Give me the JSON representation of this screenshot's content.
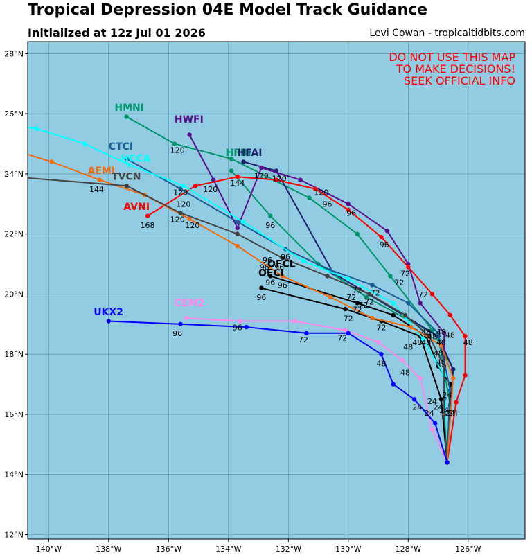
{
  "header": {
    "title": "Tropical Depression 04E Model Track Guidance",
    "subtitle": "Initialized at 12z Jul 01 2026",
    "credit": "Levi Cowan - tropicaltidbits.com"
  },
  "warning": [
    "DO NOT USE THIS MAP",
    "TO MAKE DECISIONS!",
    "SEEK OFFICIAL INFO"
  ],
  "colors": {
    "ocean": "#92cce2",
    "grid": "#4f8fa3",
    "warning": "#ff0000"
  },
  "map": {
    "lon_range": [
      -140.7,
      -124.1
    ],
    "lat_range": [
      11.85,
      28.4
    ],
    "lon_ticks": [
      -140,
      -138,
      -136,
      -134,
      -132,
      -130,
      -128,
      -126
    ],
    "lon_tick_labels": [
      "140°W",
      "138°W",
      "136°W",
      "134°W",
      "132°W",
      "130°W",
      "128°W",
      "126°W"
    ],
    "lat_ticks": [
      12,
      14,
      16,
      18,
      20,
      22,
      24,
      26,
      28
    ],
    "lat_tick_labels": [
      "12°N",
      "14°N",
      "16°N",
      "18°N",
      "20°N",
      "22°N",
      "24°N",
      "26°N",
      "28°N"
    ]
  },
  "tracks": [
    {
      "name": "HMNI",
      "color": "#00966b",
      "label_lon": -137.8,
      "label_lat": 26.1,
      "points": [
        [
          -126.7,
          14.4
        ],
        [
          -126.5,
          17.5
        ],
        [
          -127.2,
          18.8
        ],
        [
          -128.6,
          20.6
        ],
        [
          -129.7,
          22.0
        ],
        [
          -131.3,
          23.2
        ],
        [
          -133.9,
          24.5
        ],
        [
          -135.8,
          25.0
        ],
        [
          -137.4,
          25.9
        ]
      ]
    },
    {
      "name": "HFBI",
      "color": "#00966b",
      "label_lon": -134.1,
      "label_lat": 24.6,
      "points": [
        [
          -126.7,
          14.4
        ],
        [
          -126.6,
          16.3
        ],
        [
          -127.0,
          18.6
        ],
        [
          -129.4,
          19.9
        ],
        [
          -131.0,
          21.0
        ],
        [
          -132.6,
          22.6
        ],
        [
          -133.9,
          24.1
        ]
      ]
    },
    {
      "name": "HFAI",
      "color": "#1e1e6e",
      "label_lon": -133.7,
      "label_lat": 24.6,
      "points": [
        [
          -126.7,
          14.4
        ],
        [
          -126.6,
          16.0
        ],
        [
          -126.5,
          17.5
        ],
        [
          -127.0,
          18.6
        ],
        [
          -130.5,
          20.7
        ],
        [
          -132.4,
          24.1
        ],
        [
          -133.5,
          24.4
        ]
      ]
    },
    {
      "name": "HWFI",
      "color": "#5a0f8c",
      "label_lon": -135.8,
      "label_lat": 25.7,
      "points": [
        [
          -126.7,
          14.4
        ],
        [
          -126.8,
          16.5
        ],
        [
          -126.8,
          18.7
        ],
        [
          -127.6,
          19.7
        ],
        [
          -128.0,
          21.0
        ],
        [
          -128.7,
          22.1
        ],
        [
          -130.0,
          23.0
        ],
        [
          -131.6,
          23.8
        ],
        [
          -132.9,
          24.2
        ],
        [
          -133.7,
          22.2
        ],
        [
          -134.5,
          23.8
        ],
        [
          -135.3,
          25.3
        ]
      ]
    },
    {
      "name": "OFCL",
      "color": "#000000",
      "label_lon": -132.7,
      "label_lat": 20.9,
      "points": [
        [
          -126.7,
          14.4
        ],
        [
          -126.9,
          16.5
        ],
        [
          -127.6,
          18.6
        ],
        [
          -128.9,
          19.1
        ],
        [
          -130.1,
          19.5
        ],
        [
          -132.9,
          20.2
        ]
      ]
    },
    {
      "name": "OFCI",
      "color": "#000000",
      "label_lon": -133.0,
      "label_lat": 20.6,
      "points": [
        [
          -126.7,
          14.4
        ],
        [
          -126.6,
          17.0
        ],
        [
          -127.0,
          17.6
        ],
        [
          -127.4,
          18.6
        ],
        [
          -128.5,
          19.3
        ],
        [
          -129.7,
          19.7
        ],
        [
          -132.6,
          20.6
        ]
      ]
    },
    {
      "name": "AVNI",
      "color": "#ff0000",
      "label_lon": -137.5,
      "label_lat": 22.8,
      "points": [
        [
          -126.7,
          14.4
        ],
        [
          -126.4,
          16.4
        ],
        [
          -126.1,
          17.3
        ],
        [
          -126.1,
          18.6
        ],
        [
          -126.6,
          19.3
        ],
        [
          -127.2,
          20.0
        ],
        [
          -128.0,
          20.9
        ],
        [
          -128.9,
          21.9
        ],
        [
          -130.0,
          22.8
        ],
        [
          -131.1,
          23.5
        ],
        [
          -132.4,
          23.8
        ],
        [
          -133.7,
          23.9
        ],
        [
          -135.1,
          23.6
        ],
        [
          -136.7,
          22.6
        ]
      ]
    },
    {
      "name": "CTCI",
      "color": "#1a5e96",
      "label_lon": -138.0,
      "label_lat": 24.8,
      "points": [
        [
          -126.7,
          14.4
        ],
        [
          -126.6,
          16.8
        ],
        [
          -127.0,
          18.7
        ],
        [
          -128.0,
          19.7
        ],
        [
          -129.2,
          20.3
        ],
        [
          -130.6,
          20.8
        ],
        [
          -132.1,
          21.5
        ],
        [
          -133.7,
          22.4
        ],
        [
          -135.6,
          23.5
        ],
        [
          -137.4,
          24.5
        ]
      ]
    },
    {
      "name": "HCCA",
      "color": "#00ffff",
      "label_lon": -137.6,
      "label_lat": 24.4,
      "points": [
        [
          -126.7,
          14.4
        ],
        [
          -126.8,
          17.3
        ],
        [
          -127.5,
          18.5
        ],
        [
          -128.5,
          19.7
        ],
        [
          -130.0,
          20.5
        ],
        [
          -131.5,
          21.1
        ],
        [
          -133.5,
          22.4
        ],
        [
          -135.5,
          23.6
        ],
        [
          -137.3,
          24.3
        ],
        [
          -138.8,
          25.0
        ],
        [
          -140.4,
          25.5
        ],
        [
          -141.2,
          25.6
        ]
      ]
    },
    {
      "name": "AEMI",
      "color": "#f06a0f",
      "label_lon": -138.7,
      "label_lat": 24.0,
      "points": [
        [
          -126.7,
          14.4
        ],
        [
          -126.5,
          17.2
        ],
        [
          -126.9,
          18.3
        ],
        [
          -127.9,
          18.9
        ],
        [
          -129.2,
          19.2
        ],
        [
          -130.6,
          19.9
        ],
        [
          -132.2,
          20.6
        ],
        [
          -133.7,
          21.6
        ],
        [
          -135.3,
          22.5
        ],
        [
          -136.8,
          23.3
        ],
        [
          -138.3,
          23.8
        ],
        [
          -139.9,
          24.4
        ],
        [
          -141.2,
          24.8
        ]
      ]
    },
    {
      "name": "TVCN",
      "color": "#444444",
      "label_lon": -137.9,
      "label_lat": 23.8,
      "points": [
        [
          -126.7,
          14.4
        ],
        [
          -126.8,
          16.0
        ],
        [
          -126.8,
          17.6
        ],
        [
          -127.3,
          18.6
        ],
        [
          -128.1,
          19.3
        ],
        [
          -129.3,
          20.0
        ],
        [
          -130.7,
          20.6
        ],
        [
          -132.2,
          21.2
        ],
        [
          -133.7,
          22.0
        ],
        [
          -135.6,
          22.7
        ],
        [
          -137.4,
          23.6
        ],
        [
          -141.2,
          23.9
        ]
      ]
    },
    {
      "name": "CEM2",
      "color": "#ff88ee",
      "label_lon": -135.8,
      "label_lat": 19.6,
      "points": [
        [
          -126.7,
          14.4
        ],
        [
          -127.2,
          15.5
        ],
        [
          -127.6,
          17.2
        ],
        [
          -128.2,
          17.8
        ],
        [
          -129.0,
          18.4
        ],
        [
          -130.1,
          18.8
        ],
        [
          -131.8,
          19.1
        ],
        [
          -133.6,
          19.1
        ],
        [
          -135.4,
          19.2
        ]
      ]
    },
    {
      "name": "UKX2",
      "color": "#0000ff",
      "label_lon": -138.5,
      "label_lat": 19.3,
      "points": [
        [
          -126.7,
          14.4
        ],
        [
          -127.1,
          15.7
        ],
        [
          -127.8,
          16.5
        ],
        [
          -128.5,
          17.0
        ],
        [
          -128.9,
          18.0
        ],
        [
          -130.0,
          18.7
        ],
        [
          -131.4,
          18.7
        ],
        [
          -133.4,
          18.9
        ],
        [
          -135.6,
          19.0
        ],
        [
          -138.0,
          19.1
        ]
      ]
    }
  ],
  "hour_labels": [
    {
      "text": "144",
      "lon": -133.7,
      "lat": 23.6
    },
    {
      "text": "120",
      "lon": -135.7,
      "lat": 24.7
    },
    {
      "text": "120",
      "lon": -132.9,
      "lat": 23.85
    },
    {
      "text": "120",
      "lon": -132.3,
      "lat": 23.75
    },
    {
      "text": "120",
      "lon": -130.9,
      "lat": 23.3
    },
    {
      "text": "120",
      "lon": -135.6,
      "lat": 23.3
    },
    {
      "text": "120",
      "lon": -135.5,
      "lat": 22.9
    },
    {
      "text": "120",
      "lon": -134.6,
      "lat": 23.4
    },
    {
      "text": "120",
      "lon": -135.7,
      "lat": 22.4
    },
    {
      "text": "120",
      "lon": -135.2,
      "lat": 22.2
    },
    {
      "text": "144",
      "lon": -138.4,
      "lat": 23.4
    },
    {
      "text": "168",
      "lon": -136.7,
      "lat": 22.2
    },
    {
      "text": "96",
      "lon": -130.7,
      "lat": 22.9
    },
    {
      "text": "96",
      "lon": -129.9,
      "lat": 22.6
    },
    {
      "text": "96",
      "lon": -132.6,
      "lat": 22.2
    },
    {
      "text": "96",
      "lon": -128.8,
      "lat": 21.55
    },
    {
      "text": "96",
      "lon": -132.7,
      "lat": 21.05
    },
    {
      "text": "96",
      "lon": -132.1,
      "lat": 21.15
    },
    {
      "text": "96",
      "lon": -132.8,
      "lat": 20.8
    },
    {
      "text": "96",
      "lon": -132.3,
      "lat": 20.8
    },
    {
      "text": "96",
      "lon": -132.6,
      "lat": 20.3
    },
    {
      "text": "96",
      "lon": -132.2,
      "lat": 20.2
    },
    {
      "text": "96",
      "lon": -132.9,
      "lat": 19.8
    },
    {
      "text": "96",
      "lon": -135.7,
      "lat": 18.6
    },
    {
      "text": "96",
      "lon": -133.7,
      "lat": 18.8
    },
    {
      "text": "72",
      "lon": -128.1,
      "lat": 20.6
    },
    {
      "text": "72",
      "lon": -128.3,
      "lat": 20.3
    },
    {
      "text": "72",
      "lon": -127.5,
      "lat": 19.9
    },
    {
      "text": "72",
      "lon": -129.7,
      "lat": 20.05
    },
    {
      "text": "72",
      "lon": -129.1,
      "lat": 19.95
    },
    {
      "text": "72",
      "lon": -129.9,
      "lat": 19.8
    },
    {
      "text": "72",
      "lon": -129.3,
      "lat": 19.65
    },
    {
      "text": "72",
      "lon": -129.5,
      "lat": 19.55
    },
    {
      "text": "72",
      "lon": -129.7,
      "lat": 19.4
    },
    {
      "text": "72",
      "lon": -130.0,
      "lat": 19.1
    },
    {
      "text": "72",
      "lon": -128.9,
      "lat": 18.8
    },
    {
      "text": "72",
      "lon": -130.2,
      "lat": 18.45
    },
    {
      "text": "72",
      "lon": -131.5,
      "lat": 18.4
    },
    {
      "text": "48",
      "lon": -127.4,
      "lat": 18.65
    },
    {
      "text": "48",
      "lon": -127.2,
      "lat": 18.5
    },
    {
      "text": "48",
      "lon": -126.9,
      "lat": 18.65
    },
    {
      "text": "48",
      "lon": -126.6,
      "lat": 18.55
    },
    {
      "text": "48",
      "lon": -127.7,
      "lat": 18.3
    },
    {
      "text": "48",
      "lon": -127.4,
      "lat": 18.3
    },
    {
      "text": "48",
      "lon": -128.0,
      "lat": 18.15
    },
    {
      "text": "48",
      "lon": -126.9,
      "lat": 18.3
    },
    {
      "text": "48",
      "lon": -126.0,
      "lat": 18.3
    },
    {
      "text": "48",
      "lon": -127.0,
      "lat": 17.95
    },
    {
      "text": "48",
      "lon": -126.9,
      "lat": 17.65
    },
    {
      "text": "48",
      "lon": -128.9,
      "lat": 17.6
    },
    {
      "text": "48",
      "lon": -128.1,
      "lat": 17.3
    },
    {
      "text": "24",
      "lon": -126.7,
      "lat": 16.55
    },
    {
      "text": "24",
      "lon": -127.2,
      "lat": 16.35
    },
    {
      "text": "24",
      "lon": -127.0,
      "lat": 16.15
    },
    {
      "text": "24",
      "lon": -126.8,
      "lat": 16.05
    },
    {
      "text": "24",
      "lon": -126.6,
      "lat": 15.95
    },
    {
      "text": "24",
      "lon": -126.5,
      "lat": 15.95
    },
    {
      "text": "24",
      "lon": -127.3,
      "lat": 15.95
    },
    {
      "text": "24",
      "lon": -127.7,
      "lat": 16.15
    }
  ]
}
